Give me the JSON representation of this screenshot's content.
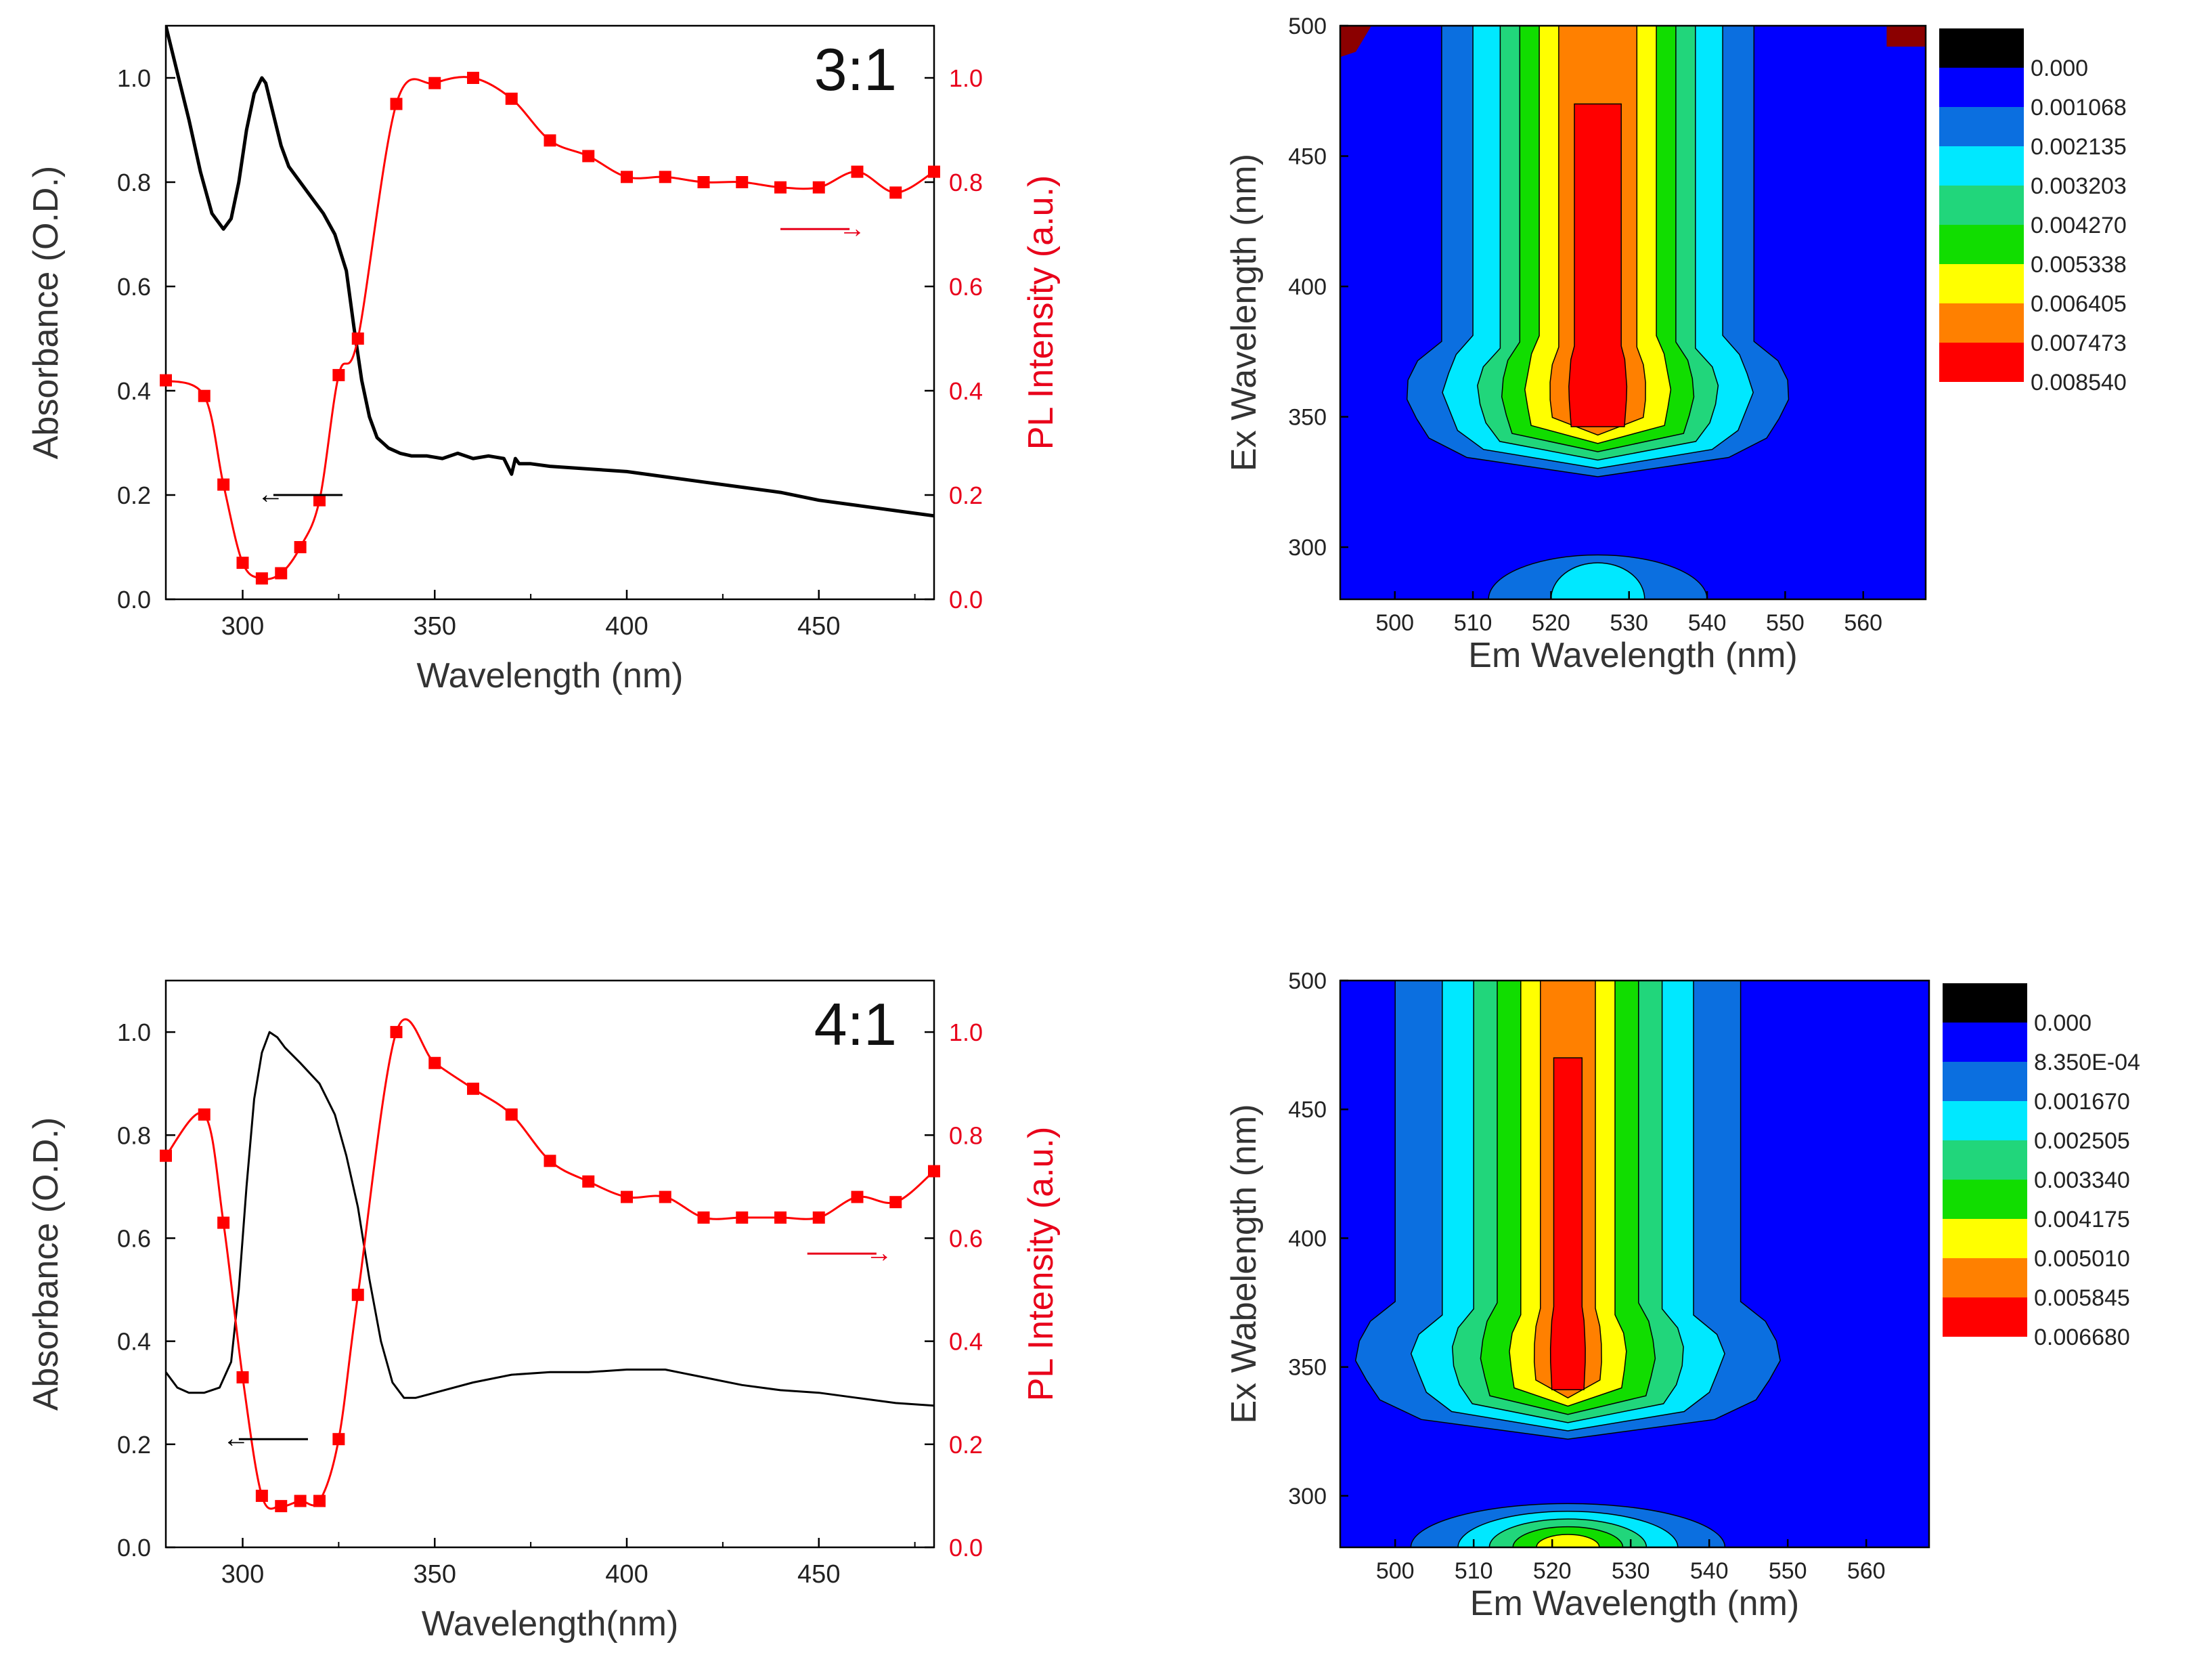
{
  "chart_data": [
    {
      "id": "abs31",
      "type": "line",
      "panel_label": "3:1",
      "xlabel": "Wavelength (nm)",
      "ylabel": "Absorbance (O.D.)",
      "y2label": "PL Intensity (a.u.)",
      "xlim": [
        280,
        480
      ],
      "ylim": [
        0,
        1.1
      ],
      "y2lim": [
        0,
        1.1
      ],
      "xticks": [
        "300",
        "350",
        "400",
        "450"
      ],
      "yticks": [
        "0.0",
        "0.2",
        "0.4",
        "0.6",
        "0.8",
        "1.0"
      ],
      "y2ticks": [
        "0.0",
        "0.2",
        "0.4",
        "0.6",
        "0.8",
        "1.0"
      ],
      "absorbance": {
        "name": "Absorbance",
        "color": "#000000",
        "x": [
          280,
          283,
          286,
          289,
          292,
          295,
          297,
          299,
          301,
          303,
          305,
          306,
          308,
          310,
          312,
          315,
          318,
          321,
          324,
          327,
          329,
          331,
          333,
          335,
          338,
          341,
          344,
          348,
          352,
          356,
          360,
          364,
          368,
          370,
          371,
          372,
          375,
          380,
          390,
          400,
          410,
          420,
          430,
          440,
          450,
          460,
          470,
          480
        ],
        "y": [
          1.1,
          1.01,
          0.92,
          0.82,
          0.74,
          0.71,
          0.73,
          0.8,
          0.9,
          0.97,
          1.0,
          0.99,
          0.93,
          0.87,
          0.83,
          0.8,
          0.77,
          0.74,
          0.7,
          0.63,
          0.52,
          0.42,
          0.35,
          0.31,
          0.29,
          0.28,
          0.275,
          0.275,
          0.27,
          0.28,
          0.27,
          0.275,
          0.27,
          0.24,
          0.27,
          0.26,
          0.26,
          0.255,
          0.25,
          0.245,
          0.235,
          0.225,
          0.215,
          0.205,
          0.19,
          0.18,
          0.17,
          0.16
        ]
      },
      "pl": {
        "name": "PL Intensity",
        "color": "#ff0000",
        "x": [
          280,
          290,
          295,
          300,
          305,
          310,
          315,
          320,
          325,
          330,
          340,
          350,
          360,
          370,
          380,
          390,
          400,
          410,
          420,
          430,
          440,
          450,
          460,
          470,
          480
        ],
        "y": [
          0.42,
          0.39,
          0.22,
          0.07,
          0.04,
          0.05,
          0.1,
          0.19,
          0.43,
          0.5,
          0.95,
          0.99,
          1.0,
          0.96,
          0.88,
          0.85,
          0.81,
          0.81,
          0.8,
          0.8,
          0.79,
          0.79,
          0.82,
          0.78,
          0.82
        ]
      },
      "arrow_left_label": "←",
      "arrow_right_label": "→"
    },
    {
      "id": "abs41",
      "type": "line",
      "panel_label": "4:1",
      "xlabel": "Wavelength(nm)",
      "ylabel": "Absorbance (O.D.)",
      "y2label": "PL Intensity (a.u.)",
      "xlim": [
        280,
        480
      ],
      "ylim": [
        0,
        1.1
      ],
      "y2lim": [
        0,
        1.1
      ],
      "xticks": [
        "300",
        "350",
        "400",
        "450"
      ],
      "yticks": [
        "0.0",
        "0.2",
        "0.4",
        "0.6",
        "0.8",
        "1.0"
      ],
      "y2ticks": [
        "0.0",
        "0.2",
        "0.4",
        "0.6",
        "0.8",
        "1.0"
      ],
      "absorbance": {
        "name": "Absorbance",
        "color": "#000000",
        "x": [
          280,
          283,
          286,
          290,
          294,
          297,
          299,
          301,
          303,
          305,
          307,
          309,
          311,
          315,
          320,
          324,
          327,
          330,
          333,
          336,
          339,
          342,
          345,
          350,
          360,
          370,
          380,
          390,
          400,
          410,
          420,
          430,
          440,
          450,
          460,
          470,
          480
        ],
        "y": [
          0.34,
          0.31,
          0.3,
          0.3,
          0.31,
          0.36,
          0.5,
          0.7,
          0.87,
          0.96,
          1.0,
          0.99,
          0.97,
          0.94,
          0.9,
          0.84,
          0.76,
          0.66,
          0.52,
          0.4,
          0.32,
          0.29,
          0.29,
          0.3,
          0.32,
          0.335,
          0.34,
          0.34,
          0.345,
          0.345,
          0.33,
          0.315,
          0.305,
          0.3,
          0.29,
          0.28,
          0.275
        ]
      },
      "pl": {
        "name": "PL Intensity",
        "color": "#ff0000",
        "x": [
          280,
          290,
          295,
          300,
          305,
          310,
          315,
          320,
          325,
          330,
          340,
          350,
          360,
          370,
          380,
          390,
          400,
          410,
          420,
          430,
          440,
          450,
          460,
          470,
          480
        ],
        "y": [
          0.76,
          0.84,
          0.63,
          0.33,
          0.1,
          0.08,
          0.09,
          0.09,
          0.21,
          0.49,
          1.0,
          0.94,
          0.89,
          0.84,
          0.75,
          0.71,
          0.68,
          0.68,
          0.64,
          0.64,
          0.64,
          0.64,
          0.68,
          0.67,
          0.73
        ]
      },
      "arrow_left_label": "←",
      "arrow_right_label": "→"
    },
    {
      "id": "contour31",
      "type": "heatmap",
      "subtype": "contour",
      "xlabel": "Em Wavelength (nm)",
      "ylabel": "Ex Wavelength (nm)",
      "xlim": [
        493,
        568
      ],
      "ylim": [
        280,
        500
      ],
      "xticks": [
        "500",
        "510",
        "520",
        "530",
        "540",
        "550",
        "560"
      ],
      "yticks": [
        "300",
        "350",
        "400",
        "450",
        "500"
      ],
      "levels": [
        {
          "label": "0.000",
          "color": "#000000"
        },
        {
          "label": "0.001068",
          "color": "#0000ff"
        },
        {
          "label": "0.002135",
          "color": "#0b6fe0"
        },
        {
          "label": "0.003203",
          "color": "#00e8ff"
        },
        {
          "label": "0.004270",
          "color": "#21d67b"
        },
        {
          "label": "0.005338",
          "color": "#11dd00"
        },
        {
          "label": "0.006405",
          "color": "#ffff00"
        },
        {
          "label": "0.007473",
          "color": "#ff8000"
        },
        {
          "label": "0.008540",
          "color": "#ff0000"
        }
      ],
      "band_center_em": 526,
      "band_halfwidths_nm": [
        20,
        16,
        12.5,
        10,
        7.5,
        5,
        3
      ],
      "peak_ex": 355,
      "lower_lobe_halfwidths_nm": [
        14,
        6
      ],
      "corner_patch_color": "#8b0000"
    },
    {
      "id": "contour41",
      "type": "heatmap",
      "subtype": "contour",
      "xlabel": "Em Wavelength (nm)",
      "ylabel": "Ex Wabelength (nm)",
      "xlim": [
        493,
        568
      ],
      "ylim": [
        280,
        500
      ],
      "xticks": [
        "500",
        "510",
        "520",
        "530",
        "540",
        "550",
        "560"
      ],
      "yticks": [
        "300",
        "350",
        "400",
        "450",
        "500"
      ],
      "levels": [
        {
          "label": "0.000",
          "color": "#000000"
        },
        {
          "label": "8.350E-04",
          "color": "#0000ff"
        },
        {
          "label": "0.001670",
          "color": "#0b6fe0"
        },
        {
          "label": "0.002505",
          "color": "#00e8ff"
        },
        {
          "label": "0.003340",
          "color": "#21d67b"
        },
        {
          "label": "0.004175",
          "color": "#11dd00"
        },
        {
          "label": "0.005010",
          "color": "#ffff00"
        },
        {
          "label": "0.005845",
          "color": "#ff8000"
        },
        {
          "label": "0.006680",
          "color": "#ff0000"
        }
      ],
      "band_center_em": 522,
      "band_halfwidths_nm": [
        22,
        16,
        12,
        9,
        6,
        3.5,
        1.8
      ],
      "peak_ex": 350,
      "lower_lobe_halfwidths_nm": [
        20,
        14,
        10,
        7,
        4
      ]
    }
  ]
}
